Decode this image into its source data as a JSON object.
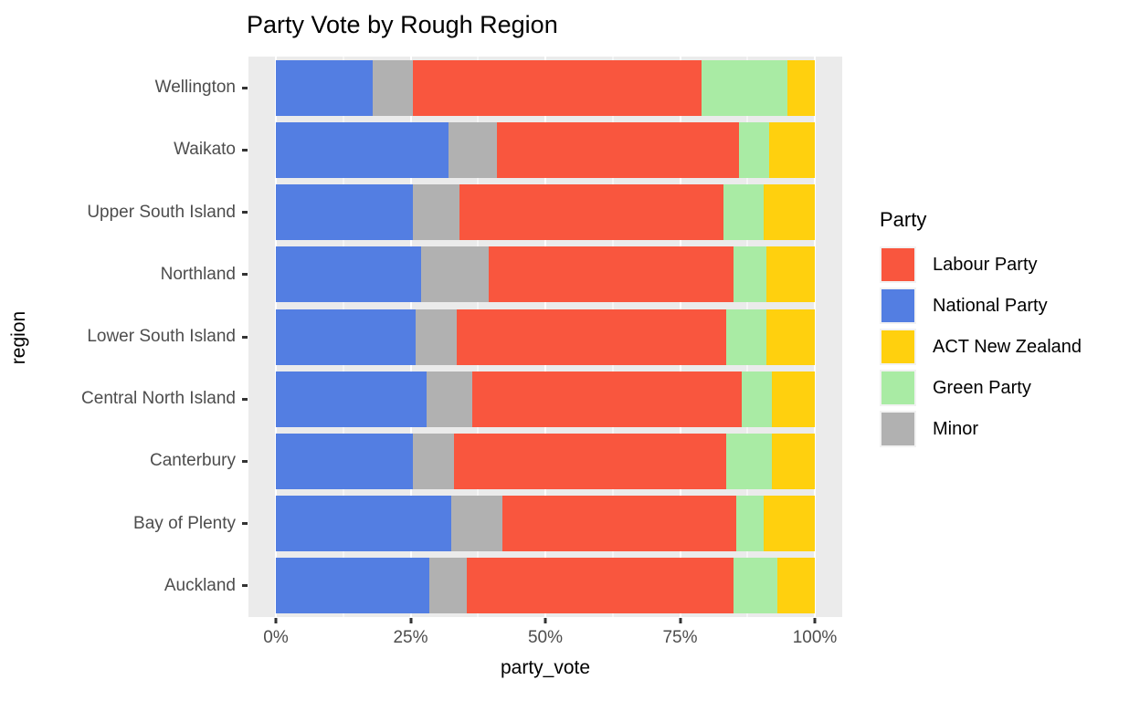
{
  "chart_data": {
    "type": "bar",
    "orientation": "horizontal_stacked",
    "title": "Party Vote by Rough Region",
    "xlabel": "party_vote",
    "ylabel": "region",
    "legend_title": "Party",
    "legend_position": "right",
    "grid": true,
    "panel_background": "#EBEBEB",
    "gridline_color": "#ffffff",
    "xlim": [
      0,
      100
    ],
    "x_tick_labels": [
      "0%",
      "25%",
      "50%",
      "75%",
      "100%"
    ],
    "x_tick_values": [
      0,
      25,
      50,
      75,
      100
    ],
    "x_minor_tick_values": [
      12.5,
      37.5,
      62.5,
      87.5
    ],
    "categories": [
      "Wellington",
      "Waikato",
      "Upper South Island",
      "Northland",
      "Lower South Island",
      "Central North Island",
      "Canterbury",
      "Bay of Plenty",
      "Auckland"
    ],
    "series": [
      {
        "name": "Labour Party",
        "color": "#F9563E",
        "values": [
          53.5,
          45.0,
          49.0,
          45.5,
          50.0,
          50.0,
          50.5,
          43.5,
          49.5
        ]
      },
      {
        "name": "National Party",
        "color": "#537EE2",
        "values": [
          18.0,
          32.0,
          25.5,
          27.0,
          26.0,
          28.0,
          25.5,
          32.5,
          28.5
        ]
      },
      {
        "name": "ACT New Zealand",
        "color": "#FFD00E",
        "values": [
          5.0,
          8.5,
          9.5,
          9.0,
          9.0,
          8.0,
          8.0,
          9.5,
          7.0
        ]
      },
      {
        "name": "Green Party",
        "color": "#A9EBA4",
        "values": [
          16.0,
          5.5,
          7.5,
          6.0,
          7.5,
          5.5,
          8.5,
          5.0,
          8.0
        ]
      },
      {
        "name": "Minor",
        "color": "#B1B1B1",
        "values": [
          7.5,
          9.0,
          8.5,
          12.5,
          7.5,
          8.5,
          7.5,
          9.5,
          7.0
        ]
      }
    ],
    "stack_order_left_to_right": [
      "National Party",
      "Minor",
      "Labour Party",
      "Green Party",
      "ACT New Zealand"
    ]
  }
}
